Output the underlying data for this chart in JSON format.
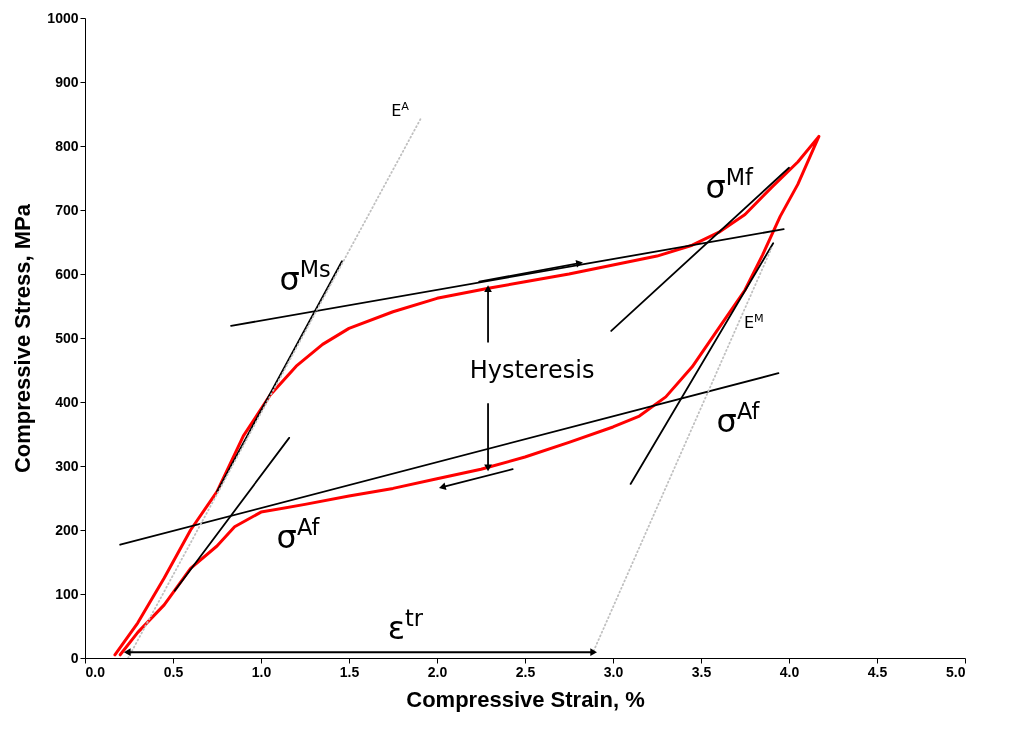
{
  "chart_data": {
    "type": "line",
    "xlabel": "Compressive Strain, %",
    "ylabel": "Compressive Stress, MPa",
    "xlim": [
      0,
      5
    ],
    "ylim": [
      0,
      1000
    ],
    "xticks": [
      {
        "value": 0,
        "label": "0.0"
      },
      {
        "value": 0.5,
        "label": "0.5"
      },
      {
        "value": 1,
        "label": "1.0"
      },
      {
        "value": 1.5,
        "label": "1.5"
      },
      {
        "value": 2,
        "label": "2.0"
      },
      {
        "value": 2.5,
        "label": "2.5"
      },
      {
        "value": 3,
        "label": "3.0"
      },
      {
        "value": 3.5,
        "label": "3.5"
      },
      {
        "value": 4,
        "label": "4.0"
      },
      {
        "value": 4.5,
        "label": "4.5"
      },
      {
        "value": 5,
        "label": "5.0"
      }
    ],
    "yticks": [
      0,
      100,
      200,
      300,
      400,
      500,
      600,
      700,
      800,
      900,
      1000
    ],
    "grid": false,
    "series": [
      {
        "color": "#ff0000",
        "x": [
          0.17,
          0.3,
          0.45,
          0.6,
          0.75,
          0.9,
          1.05,
          1.2,
          1.35,
          1.5,
          1.75,
          2.0,
          2.3,
          2.5,
          2.75,
          3.0,
          3.25,
          3.45,
          3.6,
          3.75,
          3.9,
          4.05,
          4.17,
          4.05,
          3.95,
          3.85,
          3.75,
          3.6,
          3.45,
          3.3,
          3.15,
          3.0,
          2.75,
          2.5,
          2.25,
          2.0,
          1.75,
          1.5,
          1.25,
          1.0,
          0.85,
          0.75,
          0.6,
          0.45,
          0.3,
          0.2
        ],
        "values": [
          5,
          55,
          125,
          200,
          260,
          347,
          410,
          456,
          490,
          515,
          541,
          562,
          578,
          588,
          600,
          614,
          628,
          645,
          665,
          693,
          735,
          775,
          815,
          740,
          690,
          630,
          575,
          515,
          455,
          408,
          378,
          361,
          337,
          314,
          295,
          280,
          265,
          253,
          240,
          228,
          205,
          175,
          140,
          83,
          40,
          5
        ]
      },
      {
        "color": "#000000",
        "x": [
          0.75,
          1.46
        ],
        "values": [
          260,
          620
        ]
      },
      {
        "color": "#000000",
        "x": [
          0.83,
          3.97
        ],
        "values": [
          519,
          670
        ]
      },
      {
        "color": "#000000",
        "x": [
          0.51,
          1.16
        ],
        "values": [
          105,
          344
        ]
      },
      {
        "color": "#000000",
        "x": [
          0.2,
          3.94
        ],
        "values": [
          177,
          445
        ]
      },
      {
        "color": "#000000",
        "x": [
          2.99,
          4.0
        ],
        "values": [
          511,
          766
        ]
      },
      {
        "color": "#000000",
        "x": [
          3.1,
          3.91
        ],
        "values": [
          272,
          648
        ]
      },
      {
        "color": "#c0c0c0",
        "line_style": "dotted",
        "x": [
          0.245,
          1.91
        ],
        "values": [
          0,
          844
        ]
      },
      {
        "color": "#c0c0c0",
        "line_style": "dotted",
        "x": [
          2.89,
          3.9
        ],
        "values": [
          11,
          640
        ]
      },
      {
        "color": "#000000",
        "marker": "triangle",
        "x": [
          0.24,
          2.89
        ],
        "values": [
          9,
          9
        ]
      },
      {
        "color": "#000000",
        "marker": "triangle",
        "x": [
          2.24,
          2.81
        ],
        "values": [
          588,
          617
        ]
      },
      {
        "color": "#000000",
        "marker": "triangle",
        "x": [
          2.43,
          2.03
        ],
        "values": [
          295,
          267
        ]
      },
      {
        "color": "#000000",
        "marker": "triangle",
        "x": [
          2.29,
          2.29
        ],
        "values": [
          494,
          577
        ]
      },
      {
        "color": "#000000",
        "marker": "triangle",
        "x": [
          2.29,
          2.29
        ],
        "values": [
          397,
          297
        ]
      }
    ],
    "annotations": [
      "E$^{A}$",
      "σ$^{Ms}$",
      "Hysteresis",
      "σ$^{Mf}$",
      "E$^{M}$",
      "σ$^{Af}$",
      "σ$^{Af}$",
      "ε$^{tr}$"
    ]
  }
}
